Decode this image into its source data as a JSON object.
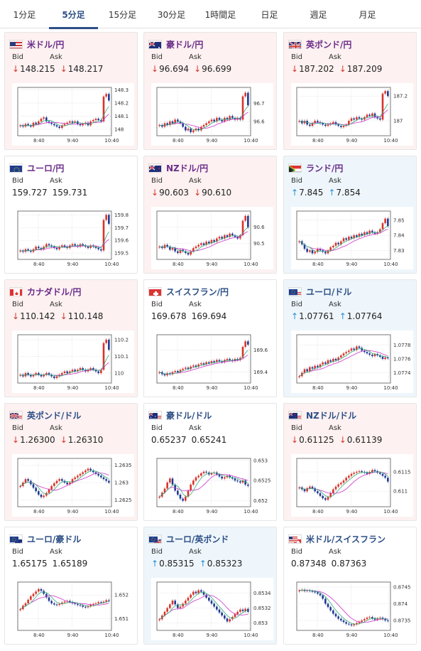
{
  "tabs": [
    {
      "label": "1分足",
      "active": false
    },
    {
      "label": "5分足",
      "active": true
    },
    {
      "label": "15分足",
      "active": false
    },
    {
      "label": "30分足",
      "active": false
    },
    {
      "label": "1時間足",
      "active": false
    },
    {
      "label": "日足",
      "active": false
    },
    {
      "label": "週足",
      "active": false
    },
    {
      "label": "月足",
      "active": false
    }
  ],
  "labels": {
    "bid": "Bid",
    "ask": "Ask"
  },
  "colors": {
    "up_candle": "#d9342b",
    "down_candle": "#1f3a93",
    "ma1": "#cc33cc",
    "ma2": "#33aa77",
    "card_down": "#fdf1f1",
    "card_up": "#eef6fb"
  },
  "x_ticks": [
    "8:40",
    "9:40",
    "10:40"
  ],
  "pairs": [
    {
      "name": "米ドル/円",
      "flag": "us-flag",
      "name_color": "purple",
      "state": "down",
      "bid": "148.215",
      "ask": "148.217",
      "bid_dir": "down",
      "ask_dir": "down",
      "chart_data": {
        "type": "candlestick",
        "y_ticks": [
          "148.3",
          "148.2",
          "148.1",
          "148"
        ],
        "ylim": [
          147.95,
          148.32
        ],
        "close": [
          148.03,
          148.02,
          148.04,
          148.03,
          148.02,
          148.05,
          148.04,
          148.06,
          148.08,
          148.09,
          148.06,
          148.05,
          148.04,
          148.03,
          148.02,
          148.01,
          148.03,
          148.04,
          148.05,
          148.06,
          148.05,
          148.06,
          148.04,
          148.03,
          148.04,
          148.05,
          148.03,
          148.06,
          148.07,
          148.08,
          148.07,
          148.06,
          148.25,
          148.27,
          148.22
        ]
      }
    },
    {
      "name": "豪ドル/円",
      "flag": "au-flag",
      "name_color": "purple",
      "state": "down",
      "bid": "96.694",
      "ask": "96.699",
      "bid_dir": "down",
      "ask_dir": "down",
      "chart_data": {
        "type": "candlestick",
        "y_ticks": [
          "96.7",
          "96.6"
        ],
        "ylim": [
          96.52,
          96.79
        ],
        "close": [
          96.58,
          96.57,
          96.59,
          96.58,
          96.6,
          96.59,
          96.61,
          96.6,
          96.59,
          96.57,
          96.55,
          96.56,
          96.54,
          96.55,
          96.56,
          96.55,
          96.57,
          96.58,
          96.59,
          96.6,
          96.61,
          96.6,
          96.62,
          96.61,
          96.6,
          96.62,
          96.61,
          96.63,
          96.62,
          96.61,
          96.62,
          96.61,
          96.74,
          96.76,
          96.69
        ]
      }
    },
    {
      "name": "英ポンド/円",
      "flag": "uk-flag",
      "name_color": "purple",
      "state": "down",
      "bid": "187.202",
      "ask": "187.209",
      "bid_dir": "down",
      "ask_dir": "down",
      "chart_data": {
        "type": "candlestick",
        "y_ticks": [
          "187.2",
          "187"
        ],
        "ylim": [
          186.88,
          187.27
        ],
        "close": [
          187.0,
          186.98,
          187.0,
          186.97,
          186.96,
          186.98,
          187.0,
          186.99,
          186.98,
          186.97,
          186.96,
          186.97,
          186.98,
          186.99,
          186.97,
          186.96,
          186.95,
          186.96,
          186.97,
          187.0,
          187.02,
          187.01,
          187.03,
          187.02,
          187.01,
          187.03,
          187.05,
          187.04,
          187.06,
          187.03,
          187.02,
          187.01,
          187.22,
          187.24,
          187.2
        ]
      }
    },
    {
      "name": "ユーロ/円",
      "flag": "eu-flag",
      "name_color": "purple",
      "state": "neutral",
      "bid": "159.727",
      "ask": "159.731",
      "bid_dir": "none",
      "ask_dir": "none",
      "chart_data": {
        "type": "candlestick",
        "y_ticks": [
          "159.8",
          "159.7",
          "159.6",
          "159.5"
        ],
        "ylim": [
          159.45,
          159.83
        ],
        "close": [
          159.52,
          159.51,
          159.53,
          159.52,
          159.51,
          159.53,
          159.55,
          159.54,
          159.53,
          159.55,
          159.57,
          159.56,
          159.55,
          159.54,
          159.53,
          159.55,
          159.56,
          159.55,
          159.54,
          159.56,
          159.57,
          159.56,
          159.55,
          159.57,
          159.56,
          159.55,
          159.54,
          159.56,
          159.55,
          159.54,
          159.53,
          159.52,
          159.76,
          159.8,
          159.73
        ]
      }
    },
    {
      "name": "NZドル/円",
      "flag": "nz-flag",
      "name_color": "purple",
      "state": "down",
      "bid": "90.603",
      "ask": "90.610",
      "bid_dir": "down",
      "ask_dir": "down",
      "chart_data": {
        "type": "candlestick",
        "y_ticks": [
          "90.6",
          "90.5"
        ],
        "ylim": [
          90.4,
          90.7
        ],
        "close": [
          90.48,
          90.47,
          90.49,
          90.48,
          90.46,
          90.47,
          90.45,
          90.44,
          90.46,
          90.45,
          90.44,
          90.43,
          90.45,
          90.47,
          90.48,
          90.49,
          90.5,
          90.49,
          90.51,
          90.5,
          90.52,
          90.51,
          90.53,
          90.54,
          90.53,
          90.55,
          90.54,
          90.56,
          90.55,
          90.54,
          90.53,
          90.55,
          90.64,
          90.67,
          90.6
        ]
      }
    },
    {
      "name": "ランド/円",
      "flag": "za-flag",
      "name_color": "purple",
      "state": "up",
      "bid": "7.845",
      "ask": "7.854",
      "bid_dir": "up",
      "ask_dir": "up",
      "chart_data": {
        "type": "candlestick",
        "y_ticks": [
          "7.85",
          "7.84",
          "7.83"
        ],
        "ylim": [
          7.824,
          7.856
        ],
        "close": [
          7.836,
          7.834,
          7.831,
          7.829,
          7.83,
          7.828,
          7.829,
          7.831,
          7.83,
          7.829,
          7.828,
          7.83,
          7.832,
          7.833,
          7.835,
          7.834,
          7.836,
          7.838,
          7.837,
          7.839,
          7.838,
          7.84,
          7.839,
          7.841,
          7.84,
          7.842,
          7.841,
          7.843,
          7.842,
          7.841,
          7.842,
          7.844,
          7.848,
          7.851,
          7.846
        ]
      }
    },
    {
      "name": "カナダドル/円",
      "flag": "ca-flag",
      "name_color": "purple",
      "state": "down",
      "bid": "110.142",
      "ask": "110.148",
      "bid_dir": "down",
      "ask_dir": "down",
      "chart_data": {
        "type": "candlestick",
        "y_ticks": [
          "110.2",
          "110.1",
          "110"
        ],
        "ylim": [
          109.94,
          110.23
        ],
        "close": [
          109.99,
          109.98,
          110.0,
          109.99,
          109.98,
          109.99,
          110.0,
          109.99,
          109.98,
          109.99,
          110.0,
          109.99,
          109.98,
          109.97,
          109.98,
          109.99,
          110.0,
          110.01,
          110.0,
          110.01,
          110.02,
          110.01,
          110.02,
          110.03,
          110.02,
          110.01,
          110.02,
          110.03,
          110.02,
          110.01,
          110.0,
          110.02,
          110.18,
          110.2,
          110.14
        ]
      }
    },
    {
      "name": "スイスフラン/円",
      "flag": "ch-flag",
      "name_color": "blue",
      "state": "neutral",
      "bid": "169.678",
      "ask": "169.694",
      "bid_dir": "none",
      "ask_dir": "none",
      "chart_data": {
        "type": "candlestick",
        "y_ticks": [
          "169.6",
          "169.4"
        ],
        "ylim": [
          169.3,
          169.74
        ],
        "close": [
          169.4,
          169.38,
          169.37,
          169.39,
          169.38,
          169.4,
          169.41,
          169.4,
          169.42,
          169.43,
          169.44,
          169.43,
          169.45,
          169.46,
          169.45,
          169.47,
          169.48,
          169.47,
          169.49,
          169.48,
          169.5,
          169.49,
          169.51,
          169.5,
          169.49,
          169.51,
          169.52,
          169.51,
          169.5,
          169.52,
          169.51,
          169.53,
          169.63,
          169.68,
          169.65
        ]
      }
    },
    {
      "name": "ユーロ/ドル",
      "flag": "eu-us-flag",
      "name_color": "blue",
      "state": "up",
      "bid": "1.07761",
      "ask": "1.07764",
      "bid_dir": "up",
      "ask_dir": "up",
      "chart_data": {
        "type": "candlestick",
        "y_ticks": [
          "1.0778",
          "1.0776",
          "1.0774"
        ],
        "ylim": [
          1.07725,
          1.07795
        ],
        "close": [
          1.07735,
          1.0774,
          1.07745,
          1.07742,
          1.07748,
          1.07746,
          1.0775,
          1.07748,
          1.07752,
          1.07755,
          1.07753,
          1.07758,
          1.07756,
          1.0776,
          1.07758,
          1.07762,
          1.07765,
          1.07768,
          1.0777,
          1.07772,
          1.07775,
          1.07773,
          1.07778,
          1.07776,
          1.07772,
          1.0777,
          1.07768,
          1.07766,
          1.07764,
          1.07767,
          1.07765,
          1.07763,
          1.0776,
          1.07762,
          1.07761
        ]
      }
    },
    {
      "name": "英ポンド/ドル",
      "flag": "uk-us-flag",
      "name_color": "blue",
      "state": "down",
      "bid": "1.26300",
      "ask": "1.26310",
      "bid_dir": "down",
      "ask_dir": "down",
      "chart_data": {
        "type": "candlestick",
        "y_ticks": [
          "1.2635",
          "1.263",
          "1.2625"
        ],
        "ylim": [
          1.2623,
          1.2637
        ],
        "close": [
          1.2629,
          1.263,
          1.2631,
          1.26305,
          1.26295,
          1.26285,
          1.26275,
          1.26265,
          1.26258,
          1.26262,
          1.2627,
          1.2628,
          1.2629,
          1.26298,
          1.26305,
          1.2631,
          1.26305,
          1.263,
          1.26295,
          1.263,
          1.2631,
          1.26315,
          1.2632,
          1.26325,
          1.2633,
          1.26335,
          1.2634,
          1.26335,
          1.2633,
          1.26325,
          1.2632,
          1.26315,
          1.2631,
          1.26305,
          1.263
        ]
      }
    },
    {
      "name": "豪ドル/ドル",
      "flag": "au-us-flag",
      "name_color": "blue",
      "state": "neutral",
      "bid": "0.65237",
      "ask": "0.65241",
      "bid_dir": "none",
      "ask_dir": "none",
      "chart_data": {
        "type": "candlestick",
        "y_ticks": [
          "0.653",
          "0.6525",
          "0.652"
        ],
        "ylim": [
          0.65185,
          0.65305
        ],
        "close": [
          0.6521,
          0.6522,
          0.6523,
          0.65245,
          0.65255,
          0.6524,
          0.65225,
          0.65215,
          0.65205,
          0.652,
          0.6521,
          0.65225,
          0.6524,
          0.6525,
          0.65258,
          0.65262,
          0.65268,
          0.65272,
          0.6527,
          0.65265,
          0.65268,
          0.6527,
          0.65265,
          0.6526,
          0.65255,
          0.65258,
          0.65262,
          0.65258,
          0.65255,
          0.6525,
          0.65248,
          0.65245,
          0.6525,
          0.6524,
          0.65237
        ]
      }
    },
    {
      "name": "NZドル/ドル",
      "flag": "nz-us-flag",
      "name_color": "blue",
      "state": "down",
      "bid": "0.61125",
      "ask": "0.61139",
      "bid_dir": "down",
      "ask_dir": "down",
      "chart_data": {
        "type": "candlestick",
        "y_ticks": [
          "0.6115",
          "0.611"
        ],
        "ylim": [
          0.6106,
          0.61185
        ],
        "close": [
          0.6111,
          0.61105,
          0.611,
          0.61108,
          0.61112,
          0.61108,
          0.611,
          0.61095,
          0.61088,
          0.61082,
          0.61078,
          0.61085,
          0.61095,
          0.61105,
          0.61112,
          0.61118,
          0.61122,
          0.61128,
          0.61135,
          0.6114,
          0.61145,
          0.61148,
          0.6115,
          0.61152,
          0.6115,
          0.61148,
          0.61145,
          0.6115,
          0.61155,
          0.61152,
          0.61148,
          0.61145,
          0.6114,
          0.61135,
          0.61125
        ]
      }
    },
    {
      "name": "ユーロ/豪ドル",
      "flag": "eu-au-flag",
      "name_color": "blue",
      "state": "neutral",
      "bid": "1.65175",
      "ask": "1.65189",
      "bid_dir": "none",
      "ask_dir": "none",
      "chart_data": {
        "type": "candlestick",
        "y_ticks": [
          "1.652",
          "1.651"
        ],
        "ylim": [
          1.6505,
          1.65255
        ],
        "close": [
          1.6514,
          1.65155,
          1.65165,
          1.6518,
          1.65195,
          1.65205,
          1.65215,
          1.65225,
          1.65218,
          1.65205,
          1.6519,
          1.65175,
          1.65165,
          1.6516,
          1.65158,
          1.65162,
          1.65168,
          1.65172,
          1.65175,
          1.6517,
          1.65165,
          1.65162,
          1.65158,
          1.65155,
          1.6515,
          1.65148,
          1.65152,
          1.65158,
          1.65162,
          1.65165,
          1.6517,
          1.65168,
          1.65172,
          1.65178,
          1.65175
        ]
      }
    },
    {
      "name": "ユーロ/英ポンド",
      "flag": "eu-uk-flag",
      "name_color": "blue",
      "state": "up",
      "bid": "0.85315",
      "ask": "0.85323",
      "bid_dir": "up",
      "ask_dir": "up",
      "chart_data": {
        "type": "candlestick",
        "y_ticks": [
          "0.8534",
          "0.8532",
          "0.853"
        ],
        "ylim": [
          0.8529,
          0.85355
        ],
        "close": [
          0.85305,
          0.8531,
          0.85315,
          0.8532,
          0.85325,
          0.8533,
          0.85325,
          0.8532,
          0.85322,
          0.85326,
          0.8533,
          0.85334,
          0.85338,
          0.85342,
          0.8534,
          0.85344,
          0.85342,
          0.85338,
          0.85334,
          0.8533,
          0.85326,
          0.85322,
          0.85318,
          0.85314,
          0.8531,
          0.85306,
          0.85302,
          0.85305,
          0.85308,
          0.85312,
          0.85315,
          0.85318,
          0.85316,
          0.85319,
          0.85315
        ]
      }
    },
    {
      "name": "米ドル/スイスフラン",
      "flag": "us-ch-flag",
      "name_color": "blue",
      "state": "neutral",
      "bid": "0.87348",
      "ask": "0.87363",
      "bid_dir": "none",
      "ask_dir": "none",
      "chart_data": {
        "type": "candlestick",
        "y_ticks": [
          "0.8745",
          "0.874",
          "0.8735"
        ],
        "ylim": [
          0.8732,
          0.87465
        ],
        "close": [
          0.8744,
          0.87442,
          0.87438,
          0.8744,
          0.87438,
          0.87436,
          0.87434,
          0.8743,
          0.87425,
          0.87415,
          0.874,
          0.8739,
          0.8738,
          0.8737,
          0.87362,
          0.87355,
          0.8735,
          0.87345,
          0.8734,
          0.87338,
          0.87335,
          0.87338,
          0.87342,
          0.87346,
          0.8735,
          0.87354,
          0.87358,
          0.8736,
          0.87356,
          0.87352,
          0.87355,
          0.87358,
          0.87354,
          0.8735,
          0.87348
        ]
      }
    }
  ]
}
